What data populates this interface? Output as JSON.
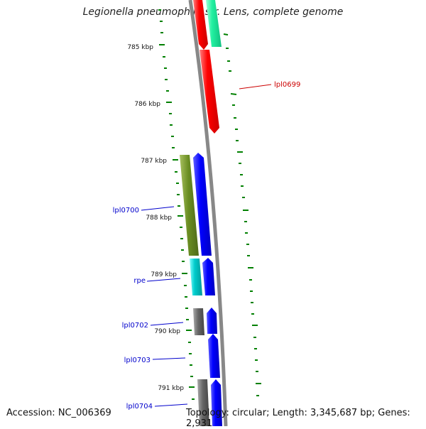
{
  "title": "Legionella pneumophila str. Lens, complete genome",
  "footer": {
    "accession": "Accession: NC_006369",
    "topology": "Topology: circular; Length: 3,345,687 bp; Genes: 2,931"
  },
  "ticks": [
    {
      "label": "785 kbp"
    },
    {
      "label": "786 kbp"
    },
    {
      "label": "787 kbp"
    },
    {
      "label": "788 kbp"
    },
    {
      "label": "789 kbp"
    },
    {
      "label": "790 kbp"
    },
    {
      "label": "791 kbp"
    }
  ],
  "genes": [
    {
      "label": "lpl0699",
      "color": "#ff0000"
    },
    {
      "label": "lpl0700",
      "color": "#0000cc"
    },
    {
      "label": "rpe",
      "color": "#0000cc"
    },
    {
      "label": "lpl0702",
      "color": "#0000cc"
    },
    {
      "label": "lpl0703",
      "color": "#0000cc"
    },
    {
      "label": "lpl0704",
      "color": "#0000cc"
    }
  ],
  "colors": {
    "forward_cds": "#0000ff",
    "reverse_cds": "#ff0000",
    "rna": "#00ee99",
    "olive": "#6b8e23",
    "cyan": "#00cccc",
    "grey": "#666666",
    "backbone": "#888888",
    "tick": "#008000"
  }
}
